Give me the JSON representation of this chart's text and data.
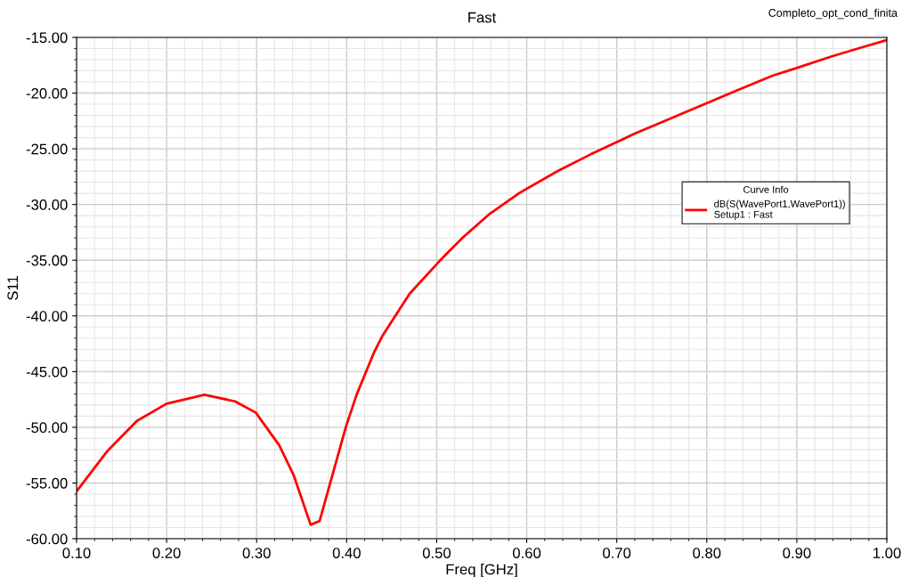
{
  "chart_data": {
    "type": "line",
    "title": "Fast",
    "xlabel": "Freq [GHz]",
    "ylabel": "S11",
    "legend_title": "Curve Info",
    "annotations": [
      "Completo_opt_cond_finita"
    ],
    "x": [
      0.1,
      0.134,
      0.167,
      0.2,
      0.242,
      0.276,
      0.299,
      0.325,
      0.341,
      0.36,
      0.37,
      0.399,
      0.411,
      0.43,
      0.44,
      0.47,
      0.503,
      0.529,
      0.559,
      0.592,
      0.635,
      0.671,
      0.706,
      0.72,
      0.767,
      0.802,
      0.833,
      0.873,
      0.899,
      0.939,
      0.972,
      1.0
    ],
    "series": [
      {
        "name": "dB(S(WavePort1,WavePort1))\nSetup1 : Fast",
        "color": "#ff0000",
        "values": [
          -55.74,
          -52.15,
          -49.43,
          -47.88,
          -47.08,
          -47.67,
          -48.68,
          -51.6,
          -54.27,
          -58.75,
          -58.4,
          -50.0,
          -47.08,
          -43.35,
          -41.75,
          -38.0,
          -35.09,
          -32.96,
          -30.83,
          -28.96,
          -26.97,
          -25.5,
          -24.17,
          -23.63,
          -22.03,
          -20.84,
          -19.77,
          -18.44,
          -17.77,
          -16.7,
          -15.9,
          -15.24
        ]
      }
    ],
    "xlim": [
      0.1,
      1.0
    ],
    "ylim": [
      -60,
      -15
    ],
    "xticks": [
      {
        "value": 0.1,
        "label": "0.10"
      },
      {
        "value": 0.2,
        "label": "0.20"
      },
      {
        "value": 0.3,
        "label": "0.30"
      },
      {
        "value": 0.4,
        "label": "0.40"
      },
      {
        "value": 0.5,
        "label": "0.50"
      },
      {
        "value": 0.6,
        "label": "0.60"
      },
      {
        "value": 0.7,
        "label": "0.70"
      },
      {
        "value": 0.8,
        "label": "0.80"
      },
      {
        "value": 0.9,
        "label": "0.90"
      },
      {
        "value": 1.0,
        "label": "1.00"
      }
    ],
    "yticks": [
      {
        "value": -60,
        "label": "-60.00"
      },
      {
        "value": -55,
        "label": "-55.00"
      },
      {
        "value": -50,
        "label": "-50.00"
      },
      {
        "value": -45,
        "label": "-45.00"
      },
      {
        "value": -40,
        "label": "-40.00"
      },
      {
        "value": -35,
        "label": "-35.00"
      },
      {
        "value": -30,
        "label": "-30.00"
      },
      {
        "value": -25,
        "label": "-25.00"
      },
      {
        "value": -20,
        "label": "-20.00"
      },
      {
        "value": -15,
        "label": "-15.00"
      }
    ],
    "grid": true,
    "legend": "right",
    "marker": "none",
    "line_style": "solid"
  }
}
